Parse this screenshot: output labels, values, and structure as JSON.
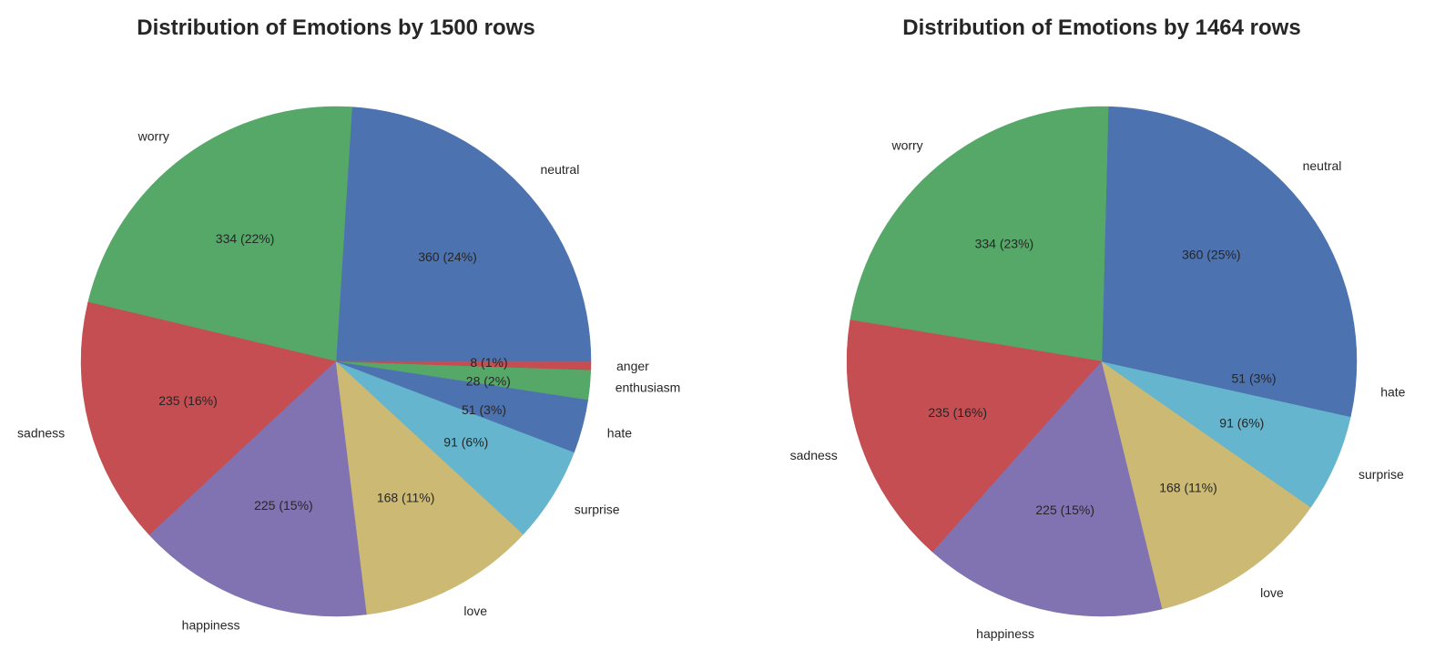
{
  "chart_data": [
    {
      "type": "pie",
      "title": "Distribution of Emotions by 1500 rows",
      "total": 1500,
      "slices": [
        {
          "label": "neutral",
          "value": 360,
          "display": "360 (24%)",
          "color": "#4c72b0"
        },
        {
          "label": "worry",
          "value": 334,
          "display": "334 (22%)",
          "color": "#55a868"
        },
        {
          "label": "sadness",
          "value": 235,
          "display": "235 (16%)",
          "color": "#c44e52"
        },
        {
          "label": "happiness",
          "value": 225,
          "display": "225 (15%)",
          "color": "#8172b2"
        },
        {
          "label": "love",
          "value": 168,
          "display": "168 (11%)",
          "color": "#ccb974"
        },
        {
          "label": "surprise",
          "value": 91,
          "display": "91 (6%)",
          "color": "#64b5cd"
        },
        {
          "label": "hate",
          "value": 51,
          "display": "51 (3%)",
          "color": "#4c72b0"
        },
        {
          "label": "enthusiasm",
          "value": 28,
          "display": "28 (2%)",
          "color": "#55a868"
        },
        {
          "label": "anger",
          "value": 8,
          "display": "8 (1%)",
          "color": "#c44e52"
        }
      ]
    },
    {
      "type": "pie",
      "title": "Distribution of Emotions by 1464 rows",
      "total": 1464,
      "slices": [
        {
          "label": "neutral",
          "value": 360,
          "display": "360 (25%)",
          "color": "#4c72b0"
        },
        {
          "label": "worry",
          "value": 334,
          "display": "334 (23%)",
          "color": "#55a868"
        },
        {
          "label": "sadness",
          "value": 235,
          "display": "235 (16%)",
          "color": "#c44e52"
        },
        {
          "label": "happiness",
          "value": 225,
          "display": "225 (15%)",
          "color": "#8172b2"
        },
        {
          "label": "love",
          "value": 168,
          "display": "168 (11%)",
          "color": "#ccb974"
        },
        {
          "label": "surprise",
          "value": 91,
          "display": "91 (6%)",
          "color": "#64b5cd"
        },
        {
          "label": "hate",
          "value": 51,
          "display": "51 (3%)",
          "color": "#4c72b0"
        }
      ]
    }
  ]
}
